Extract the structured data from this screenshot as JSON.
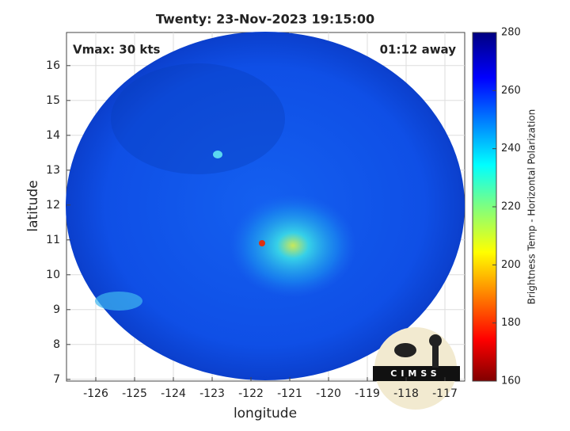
{
  "title": "Twenty: 23-Nov-2023 19:15:00",
  "annotations": [
    "Vmax: 30 kts",
    "01:12 away"
  ],
  "map": {
    "xlabel": "longitude",
    "ylabel": "latitude",
    "xlim": [
      -126.755,
      -116.49
    ],
    "ylim": [
      6.95,
      16.95
    ],
    "xticks": [
      -126,
      -125,
      -124,
      -123,
      -122,
      -121,
      -120,
      -119,
      -118,
      -117
    ],
    "yticks": [
      7,
      8,
      9,
      10,
      11,
      12,
      13,
      14,
      15,
      16
    ],
    "grid": true
  },
  "colorbar": {
    "label": "Brightness Temp - Horizontal Polarization",
    "lim": [
      160,
      280
    ],
    "ticks": [
      160,
      180,
      200,
      220,
      240,
      260,
      280
    ]
  },
  "logo": "CIMSS"
}
